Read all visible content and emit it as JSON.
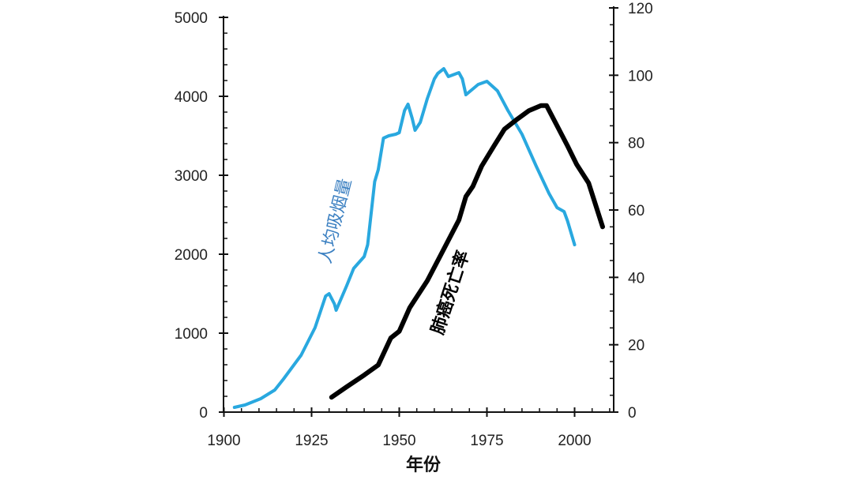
{
  "chart_data": {
    "type": "line",
    "title": "",
    "xlabel": "年份",
    "xlim": [
      1900,
      2010
    ],
    "x_ticks": [
      "1900",
      "1925",
      "1950",
      "1975",
      "2000"
    ],
    "y_left": {
      "label": "",
      "lim": [
        0,
        5000
      ],
      "ticks": [
        "0",
        "1000",
        "2000",
        "3000",
        "4000",
        "5000"
      ]
    },
    "y_right": {
      "label": "",
      "lim": [
        0,
        120
      ],
      "ticks": [
        "0",
        "20",
        "40",
        "60",
        "80",
        "100",
        "120"
      ]
    },
    "grid": false,
    "series": [
      {
        "name": "人均吸烟量",
        "axis": "left",
        "color": "#29a8df",
        "label_color": "#3a7fc1",
        "points": [
          [
            1903,
            60
          ],
          [
            1906,
            90
          ],
          [
            1910.5,
            170
          ],
          [
            1914.5,
            280
          ],
          [
            1917,
            420
          ],
          [
            1922,
            720
          ],
          [
            1926,
            1070
          ],
          [
            1929,
            1470
          ],
          [
            1930,
            1500
          ],
          [
            1931.5,
            1370
          ],
          [
            1932,
            1290
          ],
          [
            1935,
            1600
          ],
          [
            1937,
            1820
          ],
          [
            1938,
            1870
          ],
          [
            1940,
            1970
          ],
          [
            1941,
            2120
          ],
          [
            1943,
            2920
          ],
          [
            1944,
            3070
          ],
          [
            1945.5,
            3470
          ],
          [
            1947,
            3500
          ],
          [
            1949,
            3520
          ],
          [
            1950,
            3540
          ],
          [
            1951.5,
            3820
          ],
          [
            1952.5,
            3900
          ],
          [
            1953.7,
            3720
          ],
          [
            1954.5,
            3570
          ],
          [
            1956,
            3670
          ],
          [
            1958,
            3970
          ],
          [
            1960,
            4220
          ],
          [
            1961,
            4290
          ],
          [
            1962.7,
            4350
          ],
          [
            1964,
            4250
          ],
          [
            1967,
            4300
          ],
          [
            1968,
            4220
          ],
          [
            1969,
            4020
          ],
          [
            1972.5,
            4150
          ],
          [
            1975,
            4190
          ],
          [
            1978,
            4070
          ],
          [
            1981,
            3820
          ],
          [
            1985,
            3520
          ],
          [
            1989,
            3120
          ],
          [
            1992.7,
            2770
          ],
          [
            1995,
            2590
          ],
          [
            1997,
            2540
          ],
          [
            1998,
            2420
          ],
          [
            2000,
            2120
          ]
        ]
      },
      {
        "name": "肺癌死亡率",
        "axis": "right",
        "color": "#000000",
        "label_color": "#000000",
        "points": [
          [
            1930.7,
            4.4
          ],
          [
            1935,
            7.5
          ],
          [
            1940,
            11
          ],
          [
            1944,
            14
          ],
          [
            1947.6,
            22
          ],
          [
            1950,
            24
          ],
          [
            1953,
            31
          ],
          [
            1958,
            39
          ],
          [
            1962,
            47
          ],
          [
            1967,
            57
          ],
          [
            1969,
            64
          ],
          [
            1971,
            67
          ],
          [
            1973.5,
            73
          ],
          [
            1977,
            79
          ],
          [
            1980,
            84
          ],
          [
            1983.7,
            87
          ],
          [
            1987,
            89.5
          ],
          [
            1990.4,
            91
          ],
          [
            1992,
            91
          ],
          [
            1995,
            85
          ],
          [
            1998,
            79
          ],
          [
            2000.6,
            73.5
          ],
          [
            2004,
            68
          ],
          [
            2008,
            55
          ]
        ]
      }
    ]
  }
}
